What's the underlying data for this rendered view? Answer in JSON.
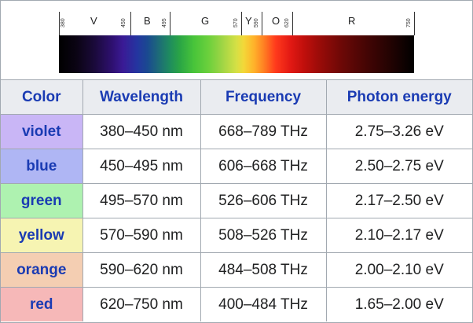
{
  "spectrum": {
    "ticks": [
      "380",
      "450",
      "495",
      "570",
      "590",
      "620",
      "750"
    ],
    "bands": [
      "V",
      "B",
      "G",
      "Y",
      "O",
      "R"
    ]
  },
  "table": {
    "headers": [
      "Color",
      "Wavelength",
      "Frequency",
      "Photon energy"
    ],
    "rows": [
      {
        "color": "violet",
        "wavelength": "380–450 nm",
        "frequency": "668–789 THz",
        "energy": "2.75–3.26 eV",
        "bg": "#c9b6f6"
      },
      {
        "color": "blue",
        "wavelength": "450–495 nm",
        "frequency": "606–668 THz",
        "energy": "2.50–2.75 eV",
        "bg": "#afb6f4"
      },
      {
        "color": "green",
        "wavelength": "495–570 nm",
        "frequency": "526–606 THz",
        "energy": "2.17–2.50 eV",
        "bg": "#aef2b0"
      },
      {
        "color": "yellow",
        "wavelength": "570–590 nm",
        "frequency": "508–526 THz",
        "energy": "2.10–2.17 eV",
        "bg": "#f6f4b2"
      },
      {
        "color": "orange",
        "wavelength": "590–620 nm",
        "frequency": "484–508 THz",
        "energy": "2.00–2.10 eV",
        "bg": "#f4ceb2"
      },
      {
        "color": "red",
        "wavelength": "620–750 nm",
        "frequency": "400–484 THz",
        "energy": "1.65–2.00 eV",
        "bg": "#f6b8b8"
      }
    ]
  }
}
